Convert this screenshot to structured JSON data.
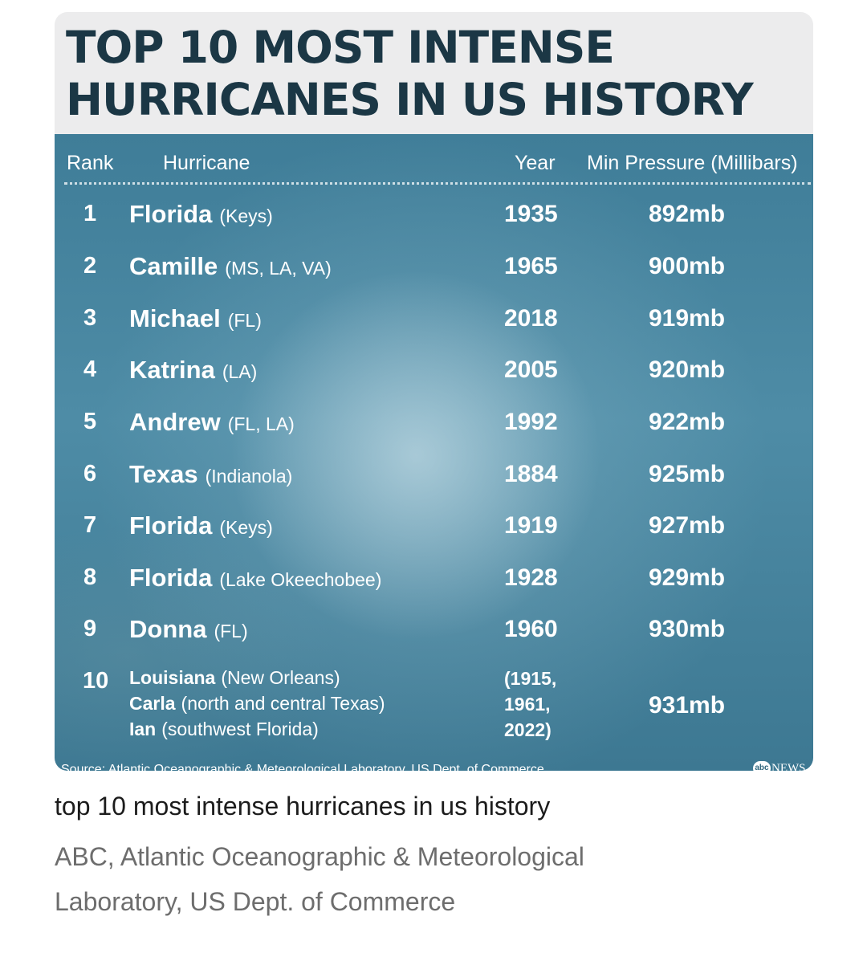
{
  "title_lines": [
    "TOP 10 MOST INTENSE",
    "HURRICANES IN US HISTORY"
  ],
  "columns": {
    "rank": "Rank",
    "hurricane": "Hurricane",
    "year": "Year",
    "pressure": "Min Pressure (Millibars)"
  },
  "chart_data": {
    "type": "table",
    "title": "TOP 10 MOST INTENSE HURRICANES IN US HISTORY",
    "columns": [
      "Rank",
      "Hurricane",
      "Year",
      "Min Pressure (Millibars)"
    ],
    "rows": [
      {
        "rank": "1",
        "name": "Florida",
        "loc": "(Keys)",
        "year": "1935",
        "pressure": "892mb"
      },
      {
        "rank": "2",
        "name": "Camille",
        "loc": "(MS, LA, VA)",
        "year": "1965",
        "pressure": "900mb"
      },
      {
        "rank": "3",
        "name": "Michael",
        "loc": "(FL)",
        "year": "2018",
        "pressure": "919mb"
      },
      {
        "rank": "4",
        "name": "Katrina",
        "loc": "(LA)",
        "year": "2005",
        "pressure": "920mb"
      },
      {
        "rank": "5",
        "name": "Andrew",
        "loc": "(FL, LA)",
        "year": "1992",
        "pressure": "922mb"
      },
      {
        "rank": "6",
        "name": "Texas",
        "loc": "(Indianola)",
        "year": "1884",
        "pressure": "925mb"
      },
      {
        "rank": "7",
        "name": "Florida",
        "loc": "(Keys)",
        "year": "1919",
        "pressure": "927mb"
      },
      {
        "rank": "8",
        "name": "Florida",
        "loc": "(Lake Okeechobee)",
        "year": "1928",
        "pressure": "929mb"
      },
      {
        "rank": "9",
        "name": "Donna",
        "loc": "(FL)",
        "year": "1960",
        "pressure": "930mb"
      }
    ],
    "last_row": {
      "rank": "10",
      "entries": [
        {
          "name": "Louisiana",
          "loc": "(New Orleans)",
          "year": "(1915,"
        },
        {
          "name": "Carla",
          "loc": "(north and central Texas)",
          "year": "1961,"
        },
        {
          "name": "Ian",
          "loc": "(southwest Florida)",
          "year": "2022)"
        }
      ],
      "pressure": "931mb"
    }
  },
  "source": "Source: Atlantic Oceanographic & Meteorological Laboratory, US Dept. of Commerce",
  "logo": {
    "mark": "abc",
    "text": "NEWS"
  },
  "caption": "top 10 most intense hurricanes in us history",
  "attribution_lines": [
    "ABC, Atlantic Oceanographic & Meteorological",
    "Laboratory, US Dept. of Commerce"
  ]
}
